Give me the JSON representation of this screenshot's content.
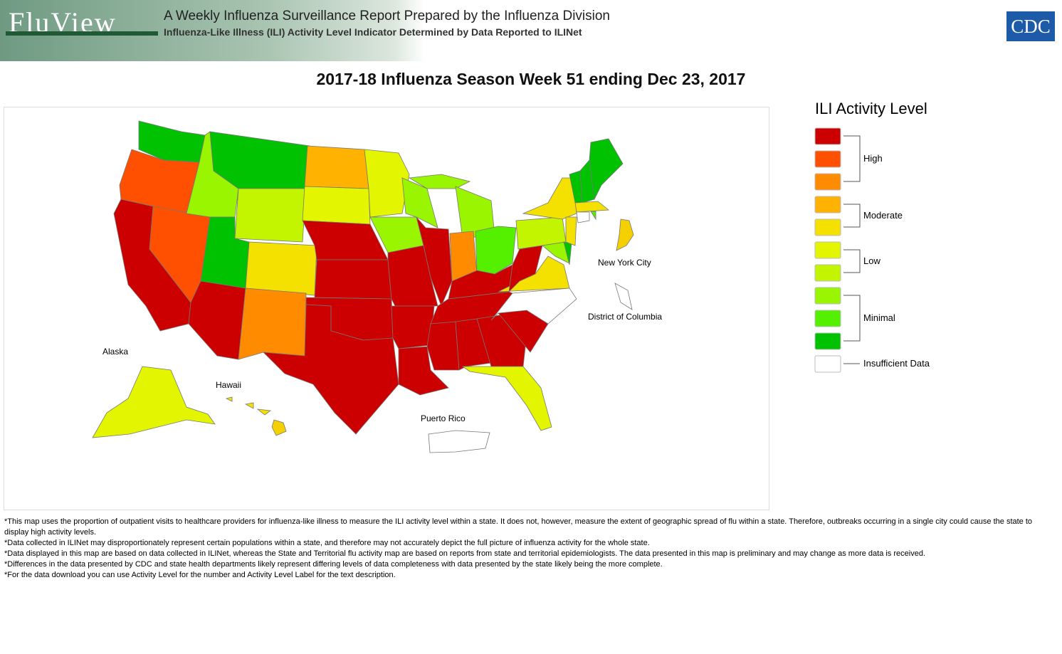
{
  "header": {
    "logo": "FluView",
    "title": "A Weekly Influenza Surveillance Report Prepared by the Influenza Division",
    "subtitle": "Influenza-Like Illness (ILI) Activity Level Indicator Determined by Data Reported to ILINet",
    "agency": "CDC"
  },
  "map": {
    "title": "2017-18 Influenza Season Week 51 ending Dec 23, 2017",
    "labels": [
      "New York City",
      "District of Columbia",
      "Alaska",
      "Hawaii",
      "Puerto Rico"
    ]
  },
  "legend": {
    "title": "ILI Activity Level",
    "colors": [
      "#cc0000",
      "#ff4f00",
      "#ff8c00",
      "#ffb300",
      "#f5e100",
      "#e4f500",
      "#c3f500",
      "#9af500",
      "#55f000",
      "#00c200",
      "#ffffff"
    ],
    "groups": [
      "High",
      "Moderate",
      "Low",
      "Minimal",
      "Insufficient Data"
    ]
  },
  "footnotes": [
    "*This map uses the proportion of outpatient visits to healthcare providers for influenza-like illness to measure the ILI activity level within a state. It does not, however, measure the extent of geographic spread of flu within a state. Therefore, outbreaks occurring in a single city could cause the state to display high activity levels.",
    "*Data collected in ILINet may disproportionately represent certain populations within a state, and therefore may not accurately depict the full picture of influenza activity for the whole state.",
    "*Data displayed in this map are based on data collected in ILINet, whereas the State and Territorial flu activity map are based on reports from state and territorial epidemiologists. The data presented in this map is preliminary and may change as more data is received.",
    "*Differences in the data presented by CDC and state health departments likely represent differing levels of data completeness with data presented by the state likely being the more complete.",
    "*For the data download you can use Activity Level for the number and Activity Level Label for the text description."
  ]
}
